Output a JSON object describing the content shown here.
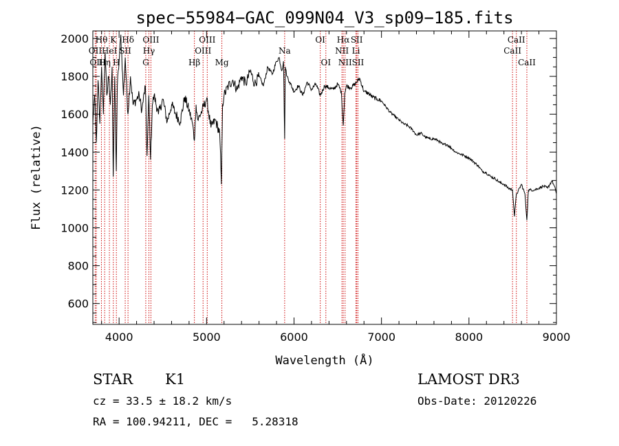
{
  "chart_data": {
    "type": "line",
    "title": "spec−55984−GAC_099N04_V3_sp09−185.fits",
    "xlabel": "Wavelength (Å)",
    "ylabel": "Flux (relative)",
    "xlim": [
      3700,
      9000
    ],
    "ylim": [
      490,
      2040
    ],
    "xticks": [
      4000,
      5000,
      6000,
      7000,
      8000,
      9000
    ],
    "yticks": [
      600,
      800,
      1000,
      1200,
      1400,
      1600,
      1800,
      2000
    ],
    "line_color": "#000000",
    "marker_color": "#cc0000",
    "spectrum": {
      "x": [
        3700,
        3720,
        3740,
        3760,
        3780,
        3800,
        3820,
        3840,
        3860,
        3880,
        3900,
        3920,
        3933,
        3950,
        3968,
        3980,
        4000,
        4020,
        4050,
        4070,
        4101,
        4130,
        4160,
        4200,
        4230,
        4260,
        4300,
        4320,
        4340,
        4360,
        4380,
        4400,
        4450,
        4500,
        4550,
        4600,
        4650,
        4700,
        4750,
        4800,
        4840,
        4861,
        4880,
        4900,
        4950,
        5000,
        5050,
        5100,
        5150,
        5170,
        5183,
        5200,
        5250,
        5300,
        5350,
        5400,
        5450,
        5500,
        5550,
        5600,
        5650,
        5700,
        5750,
        5800,
        5830,
        5860,
        5880,
        5893,
        5900,
        5920,
        5950,
        6000,
        6050,
        6100,
        6150,
        6200,
        6250,
        6300,
        6350,
        6400,
        6450,
        6500,
        6540,
        6563,
        6580,
        6600,
        6650,
        6700,
        6750,
        6800,
        6850,
        6900,
        6950,
        7000,
        7050,
        7100,
        7150,
        7200,
        7250,
        7300,
        7350,
        7400,
        7450,
        7500,
        7550,
        7600,
        7650,
        7700,
        7750,
        7800,
        7850,
        7900,
        7950,
        8000,
        8050,
        8100,
        8150,
        8200,
        8250,
        8300,
        8350,
        8400,
        8450,
        8498,
        8520,
        8542,
        8560,
        8600,
        8640,
        8662,
        8680,
        8700,
        8750,
        8800,
        8850,
        8900,
        8950,
        8990,
        9000
      ],
      "y": [
        1550,
        1700,
        1450,
        1780,
        1550,
        1850,
        1600,
        1930,
        1700,
        1800,
        1650,
        1850,
        1270,
        1800,
        1300,
        1750,
        1880,
        2020,
        1700,
        1900,
        1600,
        1800,
        1650,
        1680,
        1700,
        1620,
        1750,
        1380,
        1700,
        1360,
        1650,
        1700,
        1600,
        1680,
        1560,
        1650,
        1600,
        1560,
        1690,
        1620,
        1550,
        1460,
        1650,
        1570,
        1620,
        1680,
        1530,
        1570,
        1500,
        1230,
        1650,
        1700,
        1750,
        1780,
        1730,
        1800,
        1760,
        1830,
        1760,
        1800,
        1750,
        1850,
        1810,
        1880,
        1900,
        1830,
        1880,
        1470,
        1850,
        1800,
        1770,
        1720,
        1750,
        1700,
        1770,
        1730,
        1760,
        1700,
        1750,
        1740,
        1730,
        1760,
        1720,
        1540,
        1710,
        1750,
        1740,
        1760,
        1790,
        1720,
        1710,
        1690,
        1680,
        1670,
        1640,
        1610,
        1590,
        1570,
        1550,
        1540,
        1520,
        1490,
        1500,
        1480,
        1470,
        1470,
        1460,
        1440,
        1440,
        1420,
        1400,
        1390,
        1380,
        1370,
        1350,
        1330,
        1300,
        1290,
        1270,
        1260,
        1240,
        1230,
        1210,
        1200,
        1060,
        1180,
        1190,
        1230,
        1180,
        1040,
        1200,
        1200,
        1200,
        1210,
        1220,
        1210,
        1250,
        1200,
        1180
      ]
    },
    "lines": [
      {
        "name": "Hθ",
        "wl": 3798,
        "row": 1
      },
      {
        "name": "OII",
        "wl": 3727,
        "row": 2
      },
      {
        "name": "OII",
        "wl": 3740,
        "row": 3
      },
      {
        "name": "Hη",
        "wl": 3835,
        "row": 3
      },
      {
        "name": "K",
        "wl": 3934,
        "row": 1
      },
      {
        "name": "HeI",
        "wl": 3889,
        "row": 2
      },
      {
        "name": "H",
        "wl": 3969,
        "row": 3
      },
      {
        "name": "SII",
        "wl": 4070,
        "row": 2
      },
      {
        "name": "Hδ",
        "wl": 4102,
        "row": 1
      },
      {
        "name": "OIII",
        "wl": 4364,
        "row": 1
      },
      {
        "name": "Hγ",
        "wl": 4341,
        "row": 2
      },
      {
        "name": "G",
        "wl": 4305,
        "row": 3
      },
      {
        "name": "Hβ",
        "wl": 4861,
        "row": 3
      },
      {
        "name": "OIII",
        "wl": 5008,
        "row": 1
      },
      {
        "name": "OIII",
        "wl": 4960,
        "row": 2
      },
      {
        "name": "Mg",
        "wl": 5175,
        "row": 3
      },
      {
        "name": "Na",
        "wl": 5893,
        "row": 2
      },
      {
        "name": "OI",
        "wl": 6300,
        "row": 1
      },
      {
        "name": "OI",
        "wl": 6364,
        "row": 3
      },
      {
        "name": "Hα",
        "wl": 6563,
        "row": 1
      },
      {
        "name": "NII",
        "wl": 6548,
        "row": 2
      },
      {
        "name": "NII",
        "wl": 6584,
        "row": 3
      },
      {
        "name": "SII",
        "wl": 6717,
        "row": 1
      },
      {
        "name": "Li",
        "wl": 6708,
        "row": 2
      },
      {
        "name": "SII",
        "wl": 6731,
        "row": 3
      },
      {
        "name": "CaII",
        "wl": 8542,
        "row": 1
      },
      {
        "name": "CaII",
        "wl": 8498,
        "row": 2
      },
      {
        "name": "CaII",
        "wl": 8662,
        "row": 3
      }
    ]
  },
  "info": {
    "class": "STAR",
    "subclass": "K1",
    "survey": "LAMOST DR3",
    "cz": "cz = 33.5 ± 18.2 km/s",
    "obs_date": "Obs-Date: 20120226",
    "radec": "RA = 100.94211, DEC =   5.28318"
  }
}
